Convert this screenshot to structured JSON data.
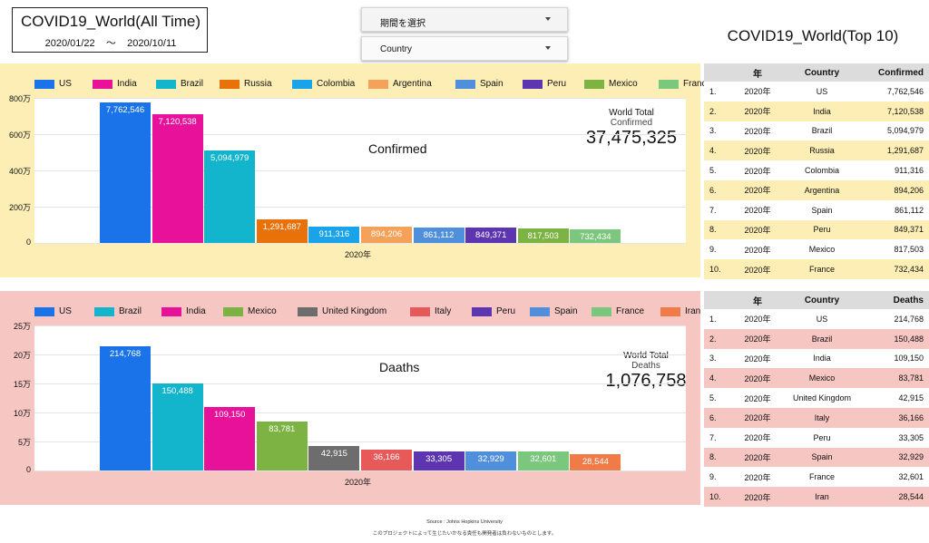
{
  "header": {
    "title": "COVID19_World(All Time)",
    "date_from": "2020/01/22",
    "date_sep": "〜",
    "date_to": "2020/10/11",
    "period_dropdown": "期間を選択",
    "country_dropdown": "Country",
    "top10_title": "COVID19_World(Top 10)"
  },
  "confirmed": {
    "title": "Confirmed",
    "world_total_label": "World Total",
    "world_total_sub": "Confirmed",
    "world_total_value": "37,475,325",
    "colors": {
      "bg": "#fdeeb5"
    }
  },
  "deaths": {
    "title": "Daaths",
    "world_total_label": "World Total",
    "world_total_sub": "Deaths",
    "world_total_value": "1,076,758",
    "colors": {
      "bg": "#f5c6c2"
    }
  },
  "chart_data": [
    {
      "type": "bar",
      "title": "Confirmed",
      "xlabel": "2020年",
      "categories": [
        "US",
        "India",
        "Brazil",
        "Russia",
        "Colombia",
        "Argentina",
        "Spain",
        "Peru",
        "Mexico",
        "France"
      ],
      "values": [
        7762546,
        7120538,
        5094979,
        1291687,
        911316,
        894206,
        861112,
        849371,
        817503,
        732434
      ],
      "value_labels": [
        "7,762,546",
        "7,120,538",
        "5,094,979",
        "1,291,687",
        "911,316",
        "894,206",
        "861,112",
        "849,371",
        "817,503",
        "732,434"
      ],
      "colors": [
        "#1a73e8",
        "#e8129a",
        "#12b5cb",
        "#e8710a",
        "#1aa3e8",
        "#f4a25a",
        "#4f8fdc",
        "#5e35b1",
        "#7cb342",
        "#7bc77e"
      ],
      "yticks": [
        0,
        2000000,
        4000000,
        6000000,
        8000000
      ],
      "ytick_labels": [
        "0",
        "200万",
        "400万",
        "600万",
        "800万"
      ],
      "ylim": [
        0,
        8000000
      ]
    },
    {
      "type": "bar",
      "title": "Daaths",
      "xlabel": "2020年",
      "categories": [
        "US",
        "Brazil",
        "India",
        "Mexico",
        "United Kingdom",
        "Italy",
        "Peru",
        "Spain",
        "France",
        "Iran"
      ],
      "values": [
        214768,
        150488,
        109150,
        83781,
        42915,
        36166,
        33305,
        32929,
        32601,
        28544
      ],
      "value_labels": [
        "214,768",
        "150,488",
        "109,150",
        "83,781",
        "42,915",
        "36,166",
        "33,305",
        "32,929",
        "32,601",
        "28,544"
      ],
      "colors": [
        "#1a73e8",
        "#12b5cb",
        "#e8129a",
        "#7cb342",
        "#6d6d6d",
        "#e85a5a",
        "#5e35b1",
        "#4f8fdc",
        "#7bc77e",
        "#f07b47"
      ],
      "yticks": [
        0,
        50000,
        100000,
        150000,
        200000,
        250000
      ],
      "ytick_labels": [
        "0",
        "5万",
        "10万",
        "15万",
        "20万",
        "25万"
      ],
      "ylim": [
        0,
        250000
      ]
    }
  ],
  "confirmed_table": {
    "headers": [
      "年",
      "Country",
      "Confirmed"
    ],
    "row_colors": [
      "#ffffff",
      "#fdeeb5"
    ],
    "rows": [
      [
        "1.",
        "2020年",
        "US",
        "7,762,546"
      ],
      [
        "2.",
        "2020年",
        "India",
        "7,120,538"
      ],
      [
        "3.",
        "2020年",
        "Brazil",
        "5,094,979"
      ],
      [
        "4.",
        "2020年",
        "Russia",
        "1,291,687"
      ],
      [
        "5.",
        "2020年",
        "Colombia",
        "911,316"
      ],
      [
        "6.",
        "2020年",
        "Argentina",
        "894,206"
      ],
      [
        "7.",
        "2020年",
        "Spain",
        "861,112"
      ],
      [
        "8.",
        "2020年",
        "Peru",
        "849,371"
      ],
      [
        "9.",
        "2020年",
        "Mexico",
        "817,503"
      ],
      [
        "10.",
        "2020年",
        "France",
        "732,434"
      ]
    ]
  },
  "deaths_table": {
    "headers": [
      "年",
      "Country",
      "Deaths"
    ],
    "row_colors": [
      "#ffffff",
      "#f5c6c2"
    ],
    "rows": [
      [
        "1.",
        "2020年",
        "US",
        "214,768"
      ],
      [
        "2.",
        "2020年",
        "Brazil",
        "150,488"
      ],
      [
        "3.",
        "2020年",
        "India",
        "109,150"
      ],
      [
        "4.",
        "2020年",
        "Mexico",
        "83,781"
      ],
      [
        "5.",
        "2020年",
        "United Kingdom",
        "42,915"
      ],
      [
        "6.",
        "2020年",
        "Italy",
        "36,166"
      ],
      [
        "7.",
        "2020年",
        "Peru",
        "33,305"
      ],
      [
        "8.",
        "2020年",
        "Spain",
        "32,929"
      ],
      [
        "9.",
        "2020年",
        "France",
        "32,601"
      ],
      [
        "10.",
        "2020年",
        "Iran",
        "28,544"
      ]
    ]
  },
  "footer": {
    "source": "Source : Johns Hopkins University",
    "disclaimer": "このプロジェクトによって生じたいかなる責任も開発者は負わないものとします。"
  }
}
